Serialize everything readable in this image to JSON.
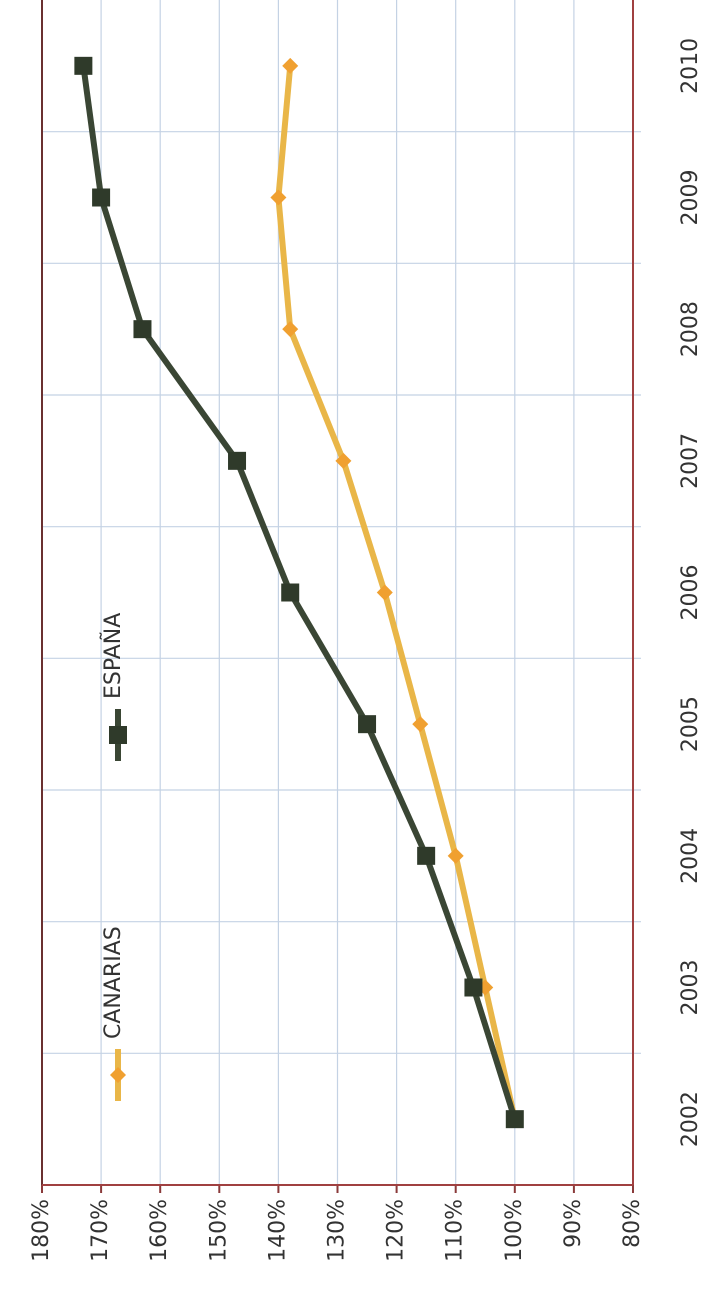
{
  "chart_data": {
    "type": "line",
    "categories": [
      "2002",
      "2003",
      "2004",
      "2005",
      "2006",
      "2007",
      "2008",
      "2009",
      "2010"
    ],
    "series": [
      {
        "name": "CANARIAS",
        "color": "#e9b648",
        "values": [
          100,
          105,
          110,
          116,
          122,
          129,
          138,
          140,
          138
        ]
      },
      {
        "name": "ESPAÑA",
        "color": "#3a4634",
        "values": [
          100,
          107,
          115,
          125,
          138,
          147,
          163,
          170,
          173
        ]
      }
    ],
    "ylim": [
      80,
      180
    ],
    "yticks": [
      {
        "value": 80,
        "label": "80%"
      },
      {
        "value": 90,
        "label": "90%"
      },
      {
        "value": 100,
        "label": "100%"
      },
      {
        "value": 110,
        "label": "110%"
      },
      {
        "value": 120,
        "label": "120%"
      },
      {
        "value": 130,
        "label": "130%"
      },
      {
        "value": 140,
        "label": "140%"
      },
      {
        "value": 150,
        "label": "150%"
      },
      {
        "value": 160,
        "label": "160%"
      },
      {
        "value": 170,
        "label": "170%"
      },
      {
        "value": 180,
        "label": "180%"
      }
    ],
    "grid": true
  }
}
